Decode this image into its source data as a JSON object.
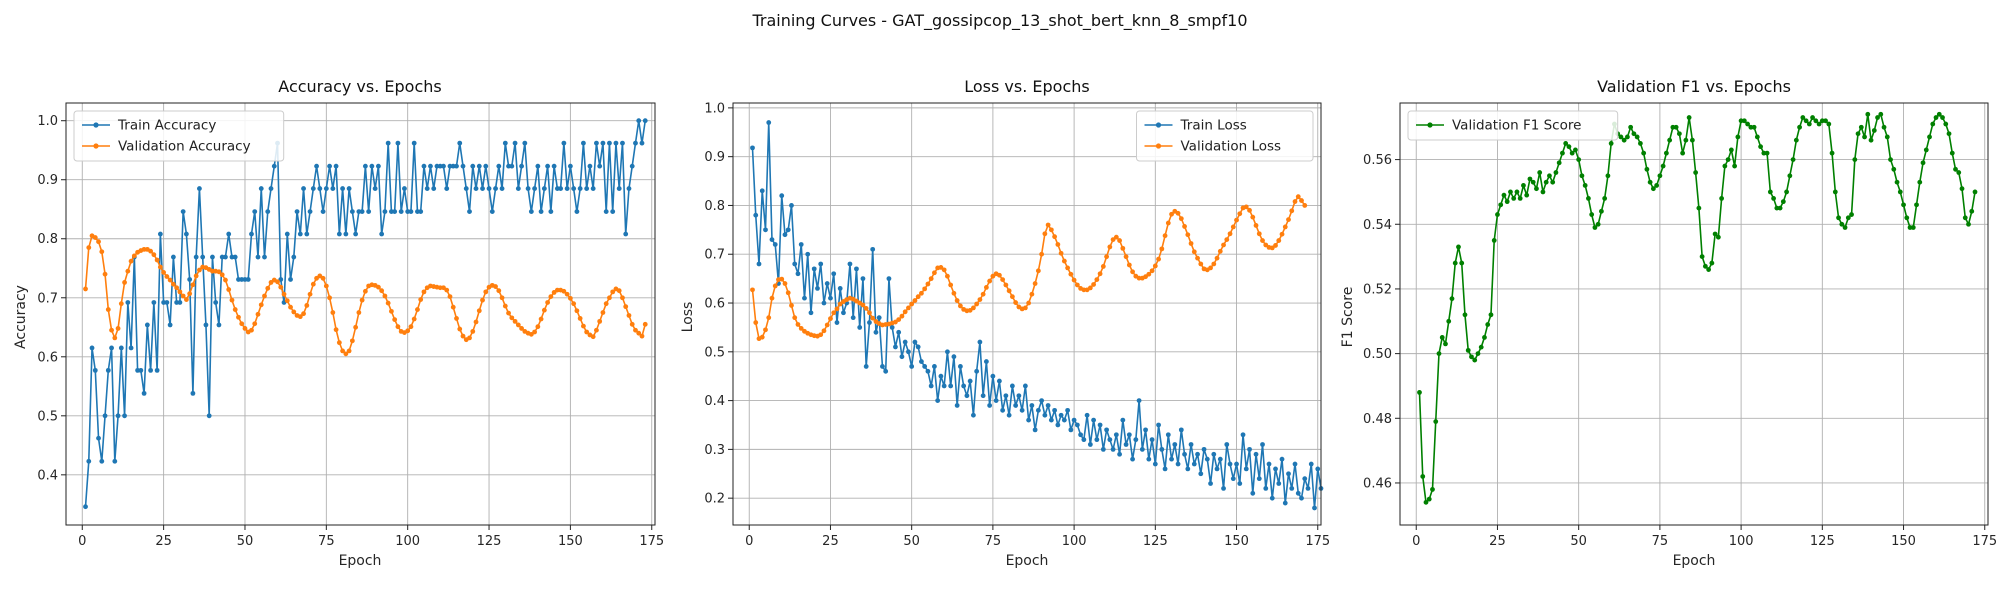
{
  "figure": {
    "suptitle": "Training Curves - GAT_gossipcop_13_shot_bert_knn_8_smpf10"
  },
  "colors": {
    "blue": "#1f77b4",
    "orange": "#ff7f0e",
    "green": "#008000"
  },
  "chart_data": [
    {
      "type": "line",
      "title": "Accuracy vs. Epochs",
      "xlabel": "Epoch",
      "ylabel": "Accuracy",
      "xlim": [
        -5,
        176
      ],
      "ylim": [
        0.315,
        1.03
      ],
      "xticks": [
        0,
        25,
        50,
        75,
        100,
        125,
        150,
        175
      ],
      "yticks": [
        0.4,
        0.5,
        0.6,
        0.7,
        0.8,
        0.9,
        1.0
      ],
      "ytick_labels": [
        "0.4",
        "0.5",
        "0.6",
        "0.7",
        "0.8",
        "0.9",
        "1.0"
      ],
      "legend_loc": "upper-left",
      "series": [
        {
          "name": "Train Accuracy",
          "color": "#1f77b4",
          "values": [
            0.346,
            0.423,
            0.615,
            0.577,
            0.462,
            0.423,
            0.5,
            0.577,
            0.615,
            0.423,
            0.5,
            0.615,
            0.5,
            0.692,
            0.615,
            0.769,
            0.577,
            0.577,
            0.538,
            0.654,
            0.577,
            0.692,
            0.577,
            0.808,
            0.692,
            0.692,
            0.654,
            0.769,
            0.692,
            0.692,
            0.846,
            0.808,
            0.731,
            0.538,
            0.769,
            0.885,
            0.769,
            0.654,
            0.5,
            0.769,
            0.692,
            0.654,
            0.769,
            0.769,
            0.808,
            0.769,
            0.769,
            0.731,
            0.731,
            0.731,
            0.731,
            0.808,
            0.846,
            0.769,
            0.885,
            0.769,
            0.846,
            0.885,
            0.923,
            0.962,
            0.731,
            0.692,
            0.808,
            0.731,
            0.769,
            0.846,
            0.808,
            0.885,
            0.808,
            0.846,
            0.885,
            0.923,
            0.885,
            0.846,
            0.885,
            0.923,
            0.885,
            0.923,
            0.808,
            0.885,
            0.808,
            0.885,
            0.846,
            0.808,
            0.846,
            0.846,
            0.923,
            0.846,
            0.923,
            0.885,
            0.923,
            0.808,
            0.846,
            0.962,
            0.846,
            0.846,
            0.962,
            0.846,
            0.885,
            0.846,
            0.846,
            0.962,
            0.846,
            0.846,
            0.923,
            0.885,
            0.923,
            0.885,
            0.923,
            0.923,
            0.923,
            0.885,
            0.923,
            0.923,
            0.923,
            0.962,
            0.923,
            0.885,
            0.846,
            0.923,
            0.885,
            0.923,
            0.885,
            0.923,
            0.885,
            0.846,
            0.885,
            0.923,
            0.885,
            0.962,
            0.923,
            0.923,
            0.962,
            0.885,
            0.923,
            0.962,
            0.885,
            0.846,
            0.885,
            0.923,
            0.846,
            0.885,
            0.923,
            0.846,
            0.923,
            0.885,
            0.885,
            0.962,
            0.885,
            0.923,
            0.885,
            0.846,
            0.885,
            0.962,
            0.885,
            0.923,
            0.885,
            0.962,
            0.923,
            0.962,
            0.846,
            0.962,
            0.846,
            0.962,
            0.885,
            0.962,
            0.808,
            0.885,
            0.923,
            0.962,
            1.0,
            0.962,
            1.0
          ]
        },
        {
          "name": "Validation Accuracy",
          "color": "#ff7f0e",
          "values": [
            0.715,
            0.785,
            0.805,
            0.802,
            0.795,
            0.778,
            0.74,
            0.68,
            0.645,
            0.632,
            0.648,
            0.69,
            0.726,
            0.745,
            0.762,
            0.771,
            0.777,
            0.78,
            0.782,
            0.782,
            0.779,
            0.773,
            0.764,
            0.752,
            0.743,
            0.736,
            0.73,
            0.723,
            0.717,
            0.71,
            0.703,
            0.697,
            0.707,
            0.722,
            0.737,
            0.747,
            0.752,
            0.751,
            0.748,
            0.745,
            0.745,
            0.744,
            0.739,
            0.73,
            0.714,
            0.696,
            0.68,
            0.667,
            0.656,
            0.648,
            0.642,
            0.645,
            0.656,
            0.672,
            0.688,
            0.703,
            0.716,
            0.726,
            0.73,
            0.727,
            0.718,
            0.706,
            0.695,
            0.684,
            0.676,
            0.67,
            0.668,
            0.673,
            0.687,
            0.706,
            0.723,
            0.733,
            0.737,
            0.733,
            0.72,
            0.7,
            0.675,
            0.646,
            0.624,
            0.61,
            0.605,
            0.61,
            0.627,
            0.65,
            0.675,
            0.696,
            0.711,
            0.72,
            0.722,
            0.721,
            0.718,
            0.712,
            0.703,
            0.691,
            0.677,
            0.663,
            0.651,
            0.643,
            0.641,
            0.644,
            0.651,
            0.664,
            0.68,
            0.697,
            0.71,
            0.717,
            0.72,
            0.719,
            0.718,
            0.717,
            0.717,
            0.713,
            0.702,
            0.684,
            0.665,
            0.647,
            0.635,
            0.629,
            0.632,
            0.643,
            0.659,
            0.678,
            0.696,
            0.71,
            0.718,
            0.721,
            0.719,
            0.712,
            0.7,
            0.686,
            0.674,
            0.666,
            0.66,
            0.654,
            0.648,
            0.643,
            0.64,
            0.638,
            0.642,
            0.651,
            0.664,
            0.679,
            0.692,
            0.702,
            0.709,
            0.713,
            0.713,
            0.711,
            0.706,
            0.699,
            0.69,
            0.678,
            0.665,
            0.652,
            0.642,
            0.637,
            0.634,
            0.645,
            0.66,
            0.675,
            0.69,
            0.7,
            0.71,
            0.715,
            0.712,
            0.7,
            0.685,
            0.67,
            0.655,
            0.645,
            0.64,
            0.635,
            0.655
          ]
        }
      ]
    },
    {
      "type": "line",
      "title": "Loss vs. Epochs",
      "xlabel": "Epoch",
      "ylabel": "Loss",
      "xlim": [
        -5,
        176
      ],
      "ylim": [
        0.145,
        1.01
      ],
      "xticks": [
        0,
        25,
        50,
        75,
        100,
        125,
        150,
        175
      ],
      "yticks": [
        0.2,
        0.3,
        0.4,
        0.5,
        0.6,
        0.7,
        0.8,
        0.9,
        1.0
      ],
      "ytick_labels": [
        "0.2",
        "0.3",
        "0.4",
        "0.5",
        "0.6",
        "0.7",
        "0.8",
        "0.9",
        "1.0"
      ],
      "legend_loc": "upper-right",
      "series": [
        {
          "name": "Train Loss",
          "color": "#1f77b4",
          "values": [
            0.918,
            0.78,
            0.68,
            0.83,
            0.75,
            0.97,
            0.73,
            0.72,
            0.64,
            0.82,
            0.74,
            0.75,
            0.8,
            0.68,
            0.66,
            0.72,
            0.61,
            0.7,
            0.58,
            0.67,
            0.63,
            0.68,
            0.6,
            0.64,
            0.61,
            0.66,
            0.56,
            0.63,
            0.58,
            0.6,
            0.68,
            0.57,
            0.67,
            0.55,
            0.65,
            0.47,
            0.56,
            0.71,
            0.54,
            0.57,
            0.47,
            0.46,
            0.65,
            0.55,
            0.51,
            0.54,
            0.49,
            0.52,
            0.5,
            0.47,
            0.52,
            0.51,
            0.48,
            0.47,
            0.46,
            0.43,
            0.47,
            0.4,
            0.45,
            0.43,
            0.5,
            0.43,
            0.49,
            0.39,
            0.47,
            0.43,
            0.41,
            0.44,
            0.37,
            0.46,
            0.52,
            0.41,
            0.48,
            0.39,
            0.45,
            0.4,
            0.44,
            0.38,
            0.41,
            0.37,
            0.43,
            0.39,
            0.41,
            0.38,
            0.43,
            0.36,
            0.39,
            0.34,
            0.38,
            0.4,
            0.37,
            0.39,
            0.36,
            0.38,
            0.35,
            0.37,
            0.36,
            0.38,
            0.34,
            0.36,
            0.35,
            0.33,
            0.32,
            0.37,
            0.31,
            0.36,
            0.32,
            0.35,
            0.3,
            0.34,
            0.32,
            0.3,
            0.33,
            0.29,
            0.36,
            0.31,
            0.33,
            0.28,
            0.32,
            0.4,
            0.3,
            0.34,
            0.28,
            0.32,
            0.27,
            0.35,
            0.3,
            0.26,
            0.33,
            0.28,
            0.31,
            0.27,
            0.34,
            0.29,
            0.26,
            0.31,
            0.27,
            0.29,
            0.25,
            0.3,
            0.28,
            0.23,
            0.29,
            0.26,
            0.28,
            0.22,
            0.31,
            0.27,
            0.24,
            0.27,
            0.23,
            0.33,
            0.26,
            0.3,
            0.21,
            0.29,
            0.24,
            0.31,
            0.22,
            0.27,
            0.2,
            0.26,
            0.23,
            0.28,
            0.19,
            0.25,
            0.22,
            0.27,
            0.21,
            0.2,
            0.24,
            0.22,
            0.27,
            0.18,
            0.26,
            0.22
          ]
        },
        {
          "name": "Validation Loss",
          "color": "#ff7f0e",
          "values": [
            0.627,
            0.56,
            0.527,
            0.53,
            0.545,
            0.57,
            0.61,
            0.635,
            0.648,
            0.649,
            0.64,
            0.621,
            0.595,
            0.57,
            0.556,
            0.548,
            0.542,
            0.538,
            0.535,
            0.533,
            0.532,
            0.535,
            0.543,
            0.555,
            0.568,
            0.58,
            0.588,
            0.598,
            0.603,
            0.607,
            0.61,
            0.608,
            0.604,
            0.6,
            0.596,
            0.589,
            0.58,
            0.569,
            0.562,
            0.558,
            0.555,
            0.556,
            0.557,
            0.559,
            0.561,
            0.566,
            0.573,
            0.582,
            0.59,
            0.598,
            0.605,
            0.613,
            0.62,
            0.629,
            0.639,
            0.65,
            0.662,
            0.672,
            0.673,
            0.668,
            0.655,
            0.637,
            0.62,
            0.605,
            0.594,
            0.587,
            0.584,
            0.585,
            0.59,
            0.598,
            0.607,
            0.618,
            0.632,
            0.645,
            0.655,
            0.66,
            0.657,
            0.648,
            0.637,
            0.625,
            0.613,
            0.601,
            0.592,
            0.588,
            0.59,
            0.6,
            0.618,
            0.64,
            0.666,
            0.7,
            0.742,
            0.76,
            0.75,
            0.736,
            0.72,
            0.702,
            0.686,
            0.672,
            0.659,
            0.647,
            0.637,
            0.63,
            0.627,
            0.627,
            0.631,
            0.638,
            0.648,
            0.66,
            0.675,
            0.695,
            0.715,
            0.73,
            0.735,
            0.728,
            0.712,
            0.695,
            0.678,
            0.664,
            0.655,
            0.651,
            0.651,
            0.654,
            0.659,
            0.666,
            0.676,
            0.69,
            0.711,
            0.738,
            0.764,
            0.782,
            0.788,
            0.784,
            0.773,
            0.757,
            0.74,
            0.722,
            0.705,
            0.692,
            0.68,
            0.67,
            0.668,
            0.672,
            0.68,
            0.692,
            0.706,
            0.719,
            0.73,
            0.742,
            0.756,
            0.77,
            0.783,
            0.795,
            0.797,
            0.79,
            0.776,
            0.759,
            0.742,
            0.728,
            0.719,
            0.714,
            0.713,
            0.718,
            0.728,
            0.741,
            0.756,
            0.771,
            0.789,
            0.808,
            0.818,
            0.81,
            0.8
          ]
        }
      ]
    },
    {
      "type": "line",
      "title": "Validation F1 vs. Epochs",
      "xlabel": "Epoch",
      "ylabel": "F1 Score",
      "xlim": [
        -5,
        176
      ],
      "ylim": [
        0.447,
        0.5775
      ],
      "xticks": [
        0,
        25,
        50,
        75,
        100,
        125,
        150,
        175
      ],
      "yticks": [
        0.46,
        0.48,
        0.5,
        0.52,
        0.54,
        0.56
      ],
      "ytick_labels": [
        "0.46",
        "0.48",
        "0.50",
        "0.52",
        "0.54",
        "0.56"
      ],
      "legend_loc": "upper-left",
      "series": [
        {
          "name": "Validation F1 Score",
          "color": "#008000",
          "values": [
            0.488,
            0.462,
            0.454,
            0.455,
            0.458,
            0.479,
            0.5,
            0.505,
            0.503,
            0.51,
            0.517,
            0.528,
            0.533,
            0.528,
            0.512,
            0.501,
            0.499,
            0.498,
            0.5,
            0.502,
            0.505,
            0.509,
            0.512,
            0.535,
            0.543,
            0.546,
            0.549,
            0.547,
            0.55,
            0.548,
            0.55,
            0.548,
            0.552,
            0.549,
            0.554,
            0.553,
            0.551,
            0.556,
            0.55,
            0.553,
            0.555,
            0.553,
            0.556,
            0.559,
            0.562,
            0.565,
            0.564,
            0.562,
            0.563,
            0.56,
            0.555,
            0.552,
            0.548,
            0.543,
            0.539,
            0.54,
            0.544,
            0.548,
            0.555,
            0.565,
            0.571,
            0.568,
            0.567,
            0.566,
            0.567,
            0.57,
            0.568,
            0.567,
            0.565,
            0.562,
            0.557,
            0.553,
            0.551,
            0.552,
            0.555,
            0.558,
            0.562,
            0.566,
            0.57,
            0.57,
            0.568,
            0.562,
            0.566,
            0.573,
            0.566,
            0.556,
            0.545,
            0.53,
            0.527,
            0.526,
            0.528,
            0.537,
            0.536,
            0.548,
            0.558,
            0.56,
            0.563,
            0.558,
            0.567,
            0.572,
            0.572,
            0.571,
            0.57,
            0.57,
            0.567,
            0.564,
            0.562,
            0.562,
            0.55,
            0.548,
            0.545,
            0.545,
            0.547,
            0.55,
            0.555,
            0.56,
            0.566,
            0.57,
            0.573,
            0.572,
            0.571,
            0.573,
            0.572,
            0.571,
            0.572,
            0.572,
            0.571,
            0.562,
            0.55,
            0.542,
            0.54,
            0.539,
            0.542,
            0.543,
            0.56,
            0.568,
            0.57,
            0.567,
            0.574,
            0.566,
            0.569,
            0.573,
            0.574,
            0.57,
            0.567,
            0.56,
            0.557,
            0.553,
            0.55,
            0.546,
            0.542,
            0.539,
            0.539,
            0.546,
            0.553,
            0.559,
            0.563,
            0.567,
            0.571,
            0.573,
            0.574,
            0.573,
            0.571,
            0.568,
            0.562,
            0.557,
            0.556,
            0.551,
            0.542,
            0.54,
            0.544,
            0.55
          ]
        }
      ]
    }
  ]
}
